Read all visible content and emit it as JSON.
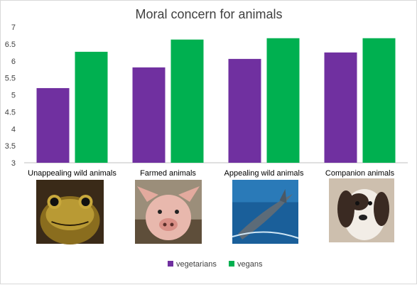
{
  "chart_data": {
    "type": "bar",
    "title": "Moral concern for animals",
    "categories": [
      "Unappealing wild animals",
      "Farmed animals",
      "Appealing wild animals",
      "Companion animals"
    ],
    "category_images": [
      "frog",
      "pig",
      "dolphin",
      "dog"
    ],
    "series": [
      {
        "name": "vegetarians",
        "color": "#7030a0",
        "values": [
          5.2,
          5.81,
          6.06,
          6.25
        ]
      },
      {
        "name": "vegans",
        "color": "#00b050",
        "values": [
          6.27,
          6.63,
          6.67,
          6.67
        ]
      }
    ],
    "ylim": [
      3,
      7
    ],
    "yticks": [
      "3",
      "3.5",
      "4",
      "4.5",
      "5",
      "5.5",
      "6",
      "6.5",
      "7"
    ],
    "xlabel": "",
    "ylabel": "",
    "grid": false,
    "legend_position": "bottom"
  }
}
